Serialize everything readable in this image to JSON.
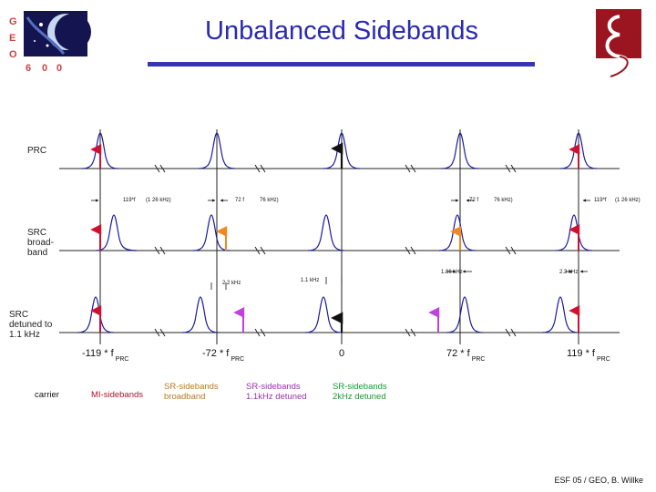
{
  "title": "Unbalanced Sidebands",
  "footer": "ESF 05 / GEO, B. Willke",
  "logo_left": {
    "letters": [
      "G",
      "E",
      "O",
      "6",
      "0",
      "0"
    ],
    "colors": [
      "#d04040",
      "#1a1a50"
    ]
  },
  "logo_right": {
    "colors": [
      "#9a1520",
      "#ffffff"
    ]
  },
  "rows": {
    "prc": "PRC",
    "src_broadband": "SRC broad- band",
    "src_detuned": "SRC detuned to 1.1 kHz"
  },
  "annotations": {
    "prc_a1": "119*f",
    "prc_a2": "(1 26 kHz)",
    "prc_b1": "72 f",
    "prc_b2": "76 kHz)",
    "prc_c1": "72 f",
    "prc_c2": "76 kHz)",
    "prc_d1": "119*f",
    "prc_d2": "(1 26 kHz)",
    "bb_a": "2.2 kHz",
    "bb_b": "1.1 kHz",
    "bb_c": "1.86 kHz",
    "bb_d": "2.3 kHz"
  },
  "axis_labels": [
    {
      "text": "-119 * f",
      "sub": "PRC"
    },
    {
      "text": "-72 * f",
      "sub": "PRC"
    },
    {
      "text": "0",
      "sub": ""
    },
    {
      "text": "72 * f",
      "sub": "PRC"
    },
    {
      "text": "119 * f",
      "sub": "PRC"
    }
  ],
  "legend": [
    {
      "id": "carrier",
      "text": "carrier",
      "color": "#111111"
    },
    {
      "id": "mi",
      "text": "MI-sidebands",
      "color": "#b01030"
    },
    {
      "id": "sr-broadband",
      "text": "SR-sidebands broadband",
      "color": "#b87a20"
    },
    {
      "id": "sr-1k1",
      "text": "SR-sidebands 1.1kHz detuned",
      "color": "#9a30b0"
    },
    {
      "id": "sr-2k",
      "text": "SR-sidebands 2kHz detuned",
      "color": "#1a9a30"
    }
  ],
  "colors": {
    "curve": "#1a1aa0",
    "carrier_arrow": "#111111",
    "mi_arrow": "#d01030",
    "src_arrow": "#f08a20",
    "det_arrow": "#c040e0",
    "title": "#2a2ab0",
    "rule": "#3535b5"
  }
}
